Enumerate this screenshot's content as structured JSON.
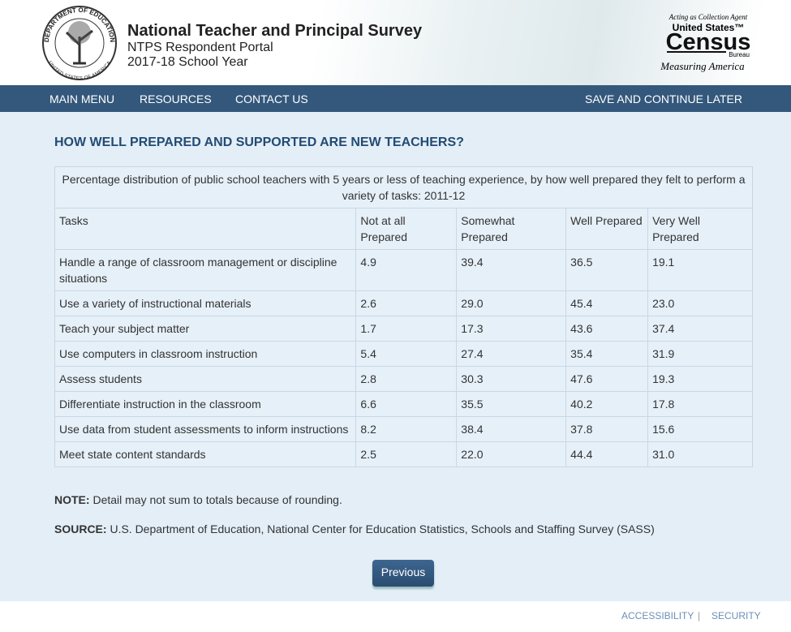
{
  "header": {
    "title": "National Teacher and Principal Survey",
    "subtitle": "NTPS Respondent Portal",
    "year": "2017-18 School Year",
    "seal": {
      "top": "DEPARTMENT OF EDUCATION",
      "bottom": "UNITED STATES OF AMERICA"
    },
    "census": {
      "agent": "Acting as Collection Agent",
      "us": "United States™",
      "name": "Census",
      "bureau": "Bureau",
      "tagline": "Measuring America"
    }
  },
  "nav": {
    "left": [
      "MAIN MENU",
      "RESOURCES",
      "CONTACT US"
    ],
    "right": "SAVE AND CONTINUE LATER"
  },
  "heading": "HOW WELL PREPARED AND SUPPORTED ARE NEW TEACHERS?",
  "table": {
    "caption": "Percentage distribution of public school teachers with 5 years or less of teaching experience, by how well prepared they felt to perform a variety of tasks: 2011-12",
    "columns": [
      "Tasks",
      "Not at all Prepared",
      "Somewhat Prepared",
      "Well Prepared",
      "Very Well Prepared"
    ],
    "rows": [
      [
        "Handle a range of classroom management or discipline situations",
        "4.9",
        "39.4",
        "36.5",
        "19.1"
      ],
      [
        "Use a variety of instructional materials",
        "2.6",
        "29.0",
        "45.4",
        "23.0"
      ],
      [
        "Teach your subject matter",
        "1.7",
        "17.3",
        "43.6",
        "37.4"
      ],
      [
        "Use computers in classroom instruction",
        "5.4",
        "27.4",
        "35.4",
        "31.9"
      ],
      [
        "Assess students",
        "2.8",
        "30.3",
        "47.6",
        "19.3"
      ],
      [
        "Differentiate instruction in the classroom",
        "6.6",
        "35.5",
        "40.2",
        "17.8"
      ],
      [
        "Use data from student assessments to inform instructions",
        "8.2",
        "38.4",
        "37.8",
        "15.6"
      ],
      [
        "Meet state content standards",
        "2.5",
        "22.0",
        "44.4",
        "31.0"
      ]
    ]
  },
  "note": {
    "label": "NOTE:",
    "text": "Detail may not sum to totals because of rounding."
  },
  "source": {
    "label": "SOURCE:",
    "text": "U.S. Department of Education, National Center for Education Statistics, Schools and Staffing Survey (SASS)"
  },
  "button": "Previous",
  "footer": {
    "links": [
      "ACCESSIBILITY",
      "SECURITY"
    ],
    "separator": "|"
  }
}
